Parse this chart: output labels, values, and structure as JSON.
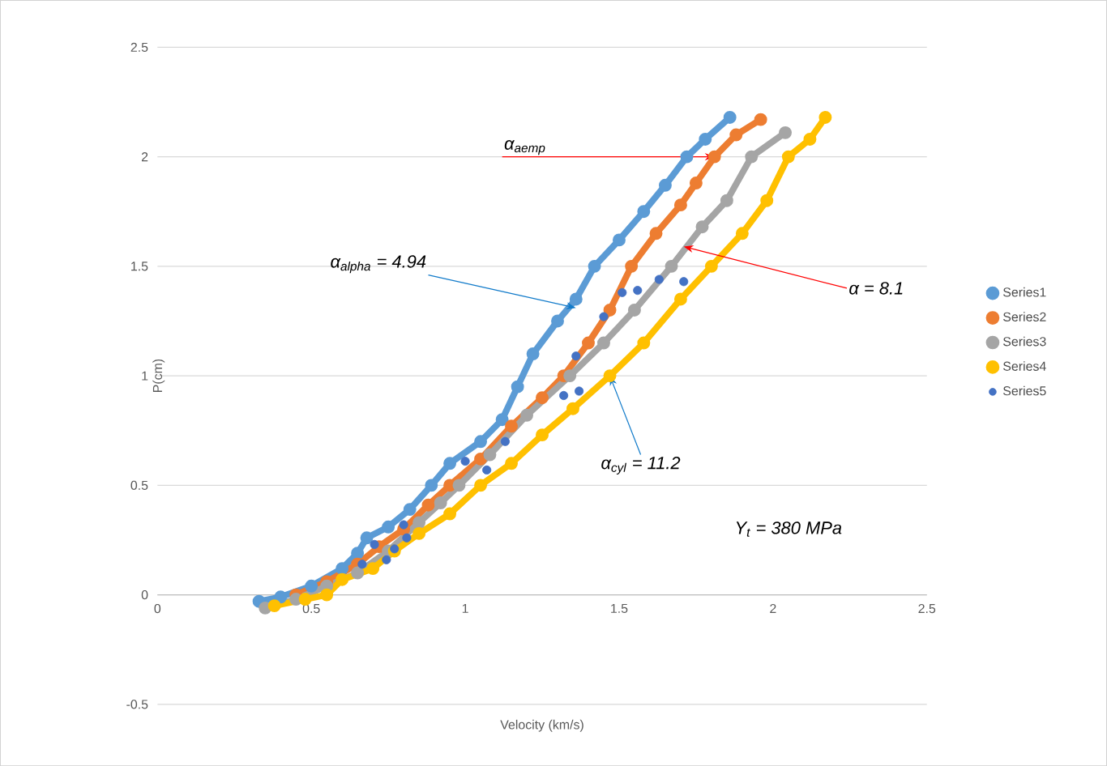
{
  "chart_data": {
    "type": "line",
    "xlabel": "Velocity (km/s)",
    "ylabel": "P(cm)",
    "xlim": [
      0,
      2.5
    ],
    "ylim": [
      -0.5,
      2.5
    ],
    "xticks": [
      0,
      0.5,
      1,
      1.5,
      2,
      2.5
    ],
    "yticks": [
      -0.5,
      0,
      0.5,
      1,
      1.5,
      2,
      2.5
    ],
    "grid": "y",
    "legend": "right",
    "marker": "circle",
    "series": [
      {
        "name": "Series1",
        "color": "#5b9bd5",
        "x": [
          0.33,
          0.4,
          0.5,
          0.6,
          0.65,
          0.68,
          0.75,
          0.82,
          0.89,
          0.95,
          1.05,
          1.12,
          1.17,
          1.22,
          1.3,
          1.36,
          1.42,
          1.5,
          1.58,
          1.65,
          1.72,
          1.78,
          1.86
        ],
        "values": [
          -0.03,
          -0.01,
          0.04,
          0.12,
          0.19,
          0.26,
          0.31,
          0.39,
          0.5,
          0.6,
          0.7,
          0.8,
          0.95,
          1.1,
          1.25,
          1.35,
          1.5,
          1.62,
          1.75,
          1.87,
          2.0,
          2.08,
          2.18
        ]
      },
      {
        "name": "Series2",
        "color": "#ed7d31",
        "x": [
          0.45,
          0.55,
          0.65,
          0.72,
          0.8,
          0.88,
          0.95,
          1.05,
          1.15,
          1.25,
          1.32,
          1.4,
          1.47,
          1.54,
          1.62,
          1.7,
          1.75,
          1.81,
          1.88,
          1.96
        ],
        "values": [
          0.0,
          0.06,
          0.14,
          0.22,
          0.3,
          0.41,
          0.5,
          0.62,
          0.77,
          0.9,
          1.0,
          1.15,
          1.3,
          1.5,
          1.65,
          1.78,
          1.88,
          2.0,
          2.1,
          2.17
        ]
      },
      {
        "name": "Series3",
        "color": "#a5a5a5",
        "x": [
          0.35,
          0.45,
          0.55,
          0.65,
          0.75,
          0.85,
          0.92,
          0.98,
          1.08,
          1.2,
          1.34,
          1.45,
          1.55,
          1.67,
          1.77,
          1.85,
          1.93,
          2.04
        ],
        "values": [
          -0.06,
          -0.02,
          0.04,
          0.1,
          0.2,
          0.33,
          0.42,
          0.5,
          0.64,
          0.82,
          1.0,
          1.15,
          1.3,
          1.5,
          1.68,
          1.8,
          2.0,
          2.11
        ]
      },
      {
        "name": "Series4",
        "color": "#ffc000",
        "x": [
          0.38,
          0.48,
          0.55,
          0.6,
          0.7,
          0.77,
          0.85,
          0.95,
          1.05,
          1.15,
          1.25,
          1.35,
          1.47,
          1.58,
          1.7,
          1.8,
          1.9,
          1.98,
          2.05,
          2.12,
          2.17
        ],
        "values": [
          -0.05,
          -0.02,
          0.0,
          0.07,
          0.12,
          0.2,
          0.28,
          0.37,
          0.5,
          0.6,
          0.73,
          0.85,
          1.0,
          1.15,
          1.35,
          1.5,
          1.65,
          1.8,
          2.0,
          2.08,
          2.18
        ]
      },
      {
        "name": "Series5",
        "color": "#4472c4",
        "type": "scatter",
        "x": [
          0.665,
          0.705,
          0.744,
          0.77,
          0.8,
          0.81,
          1.0,
          1.07,
          1.13,
          1.32,
          1.37,
          1.36,
          1.45,
          1.51,
          1.56,
          1.63,
          1.71
        ],
        "values": [
          0.14,
          0.23,
          0.16,
          0.21,
          0.32,
          0.26,
          0.61,
          0.57,
          0.7,
          0.91,
          0.93,
          1.09,
          1.27,
          1.38,
          1.39,
          1.44,
          1.43
        ]
      }
    ],
    "annotations": [
      {
        "text": "α$_{aemp}$",
        "x": 1.81,
        "y": 2.0
      },
      {
        "text": "α$_{alpha}$ = 4.94",
        "x": 1.36,
        "y": 1.31
      },
      {
        "text": "α = 8.1",
        "x": 1.71,
        "y": 1.59
      },
      {
        "text": "α$_{cyl}$ = 11.2",
        "x": 1.47,
        "y": 1.0
      },
      "Y$_{t}$ = 380 MPa"
    ]
  }
}
